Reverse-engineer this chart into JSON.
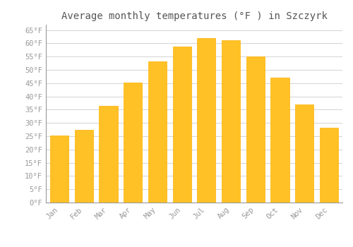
{
  "title": "Average monthly temperatures (°F ) in Szczyrk",
  "months": [
    "Jan",
    "Feb",
    "Mar",
    "Apr",
    "May",
    "Jun",
    "Jul",
    "Aug",
    "Sep",
    "Oct",
    "Nov",
    "Dec"
  ],
  "values": [
    25.2,
    27.5,
    36.3,
    45.1,
    53.1,
    58.8,
    61.9,
    61.1,
    55.1,
    47.1,
    37.0,
    28.1
  ],
  "bar_color": "#FFC125",
  "bar_edge_color": "#FFB000",
  "background_color": "#ffffff",
  "grid_color": "#cccccc",
  "ylim": [
    0,
    67
  ],
  "yticks": [
    0,
    5,
    10,
    15,
    20,
    25,
    30,
    35,
    40,
    45,
    50,
    55,
    60,
    65
  ],
  "title_fontsize": 10,
  "tick_fontsize": 7.5,
  "tick_color": "#999999",
  "title_color": "#555555",
  "spine_color": "#999999"
}
